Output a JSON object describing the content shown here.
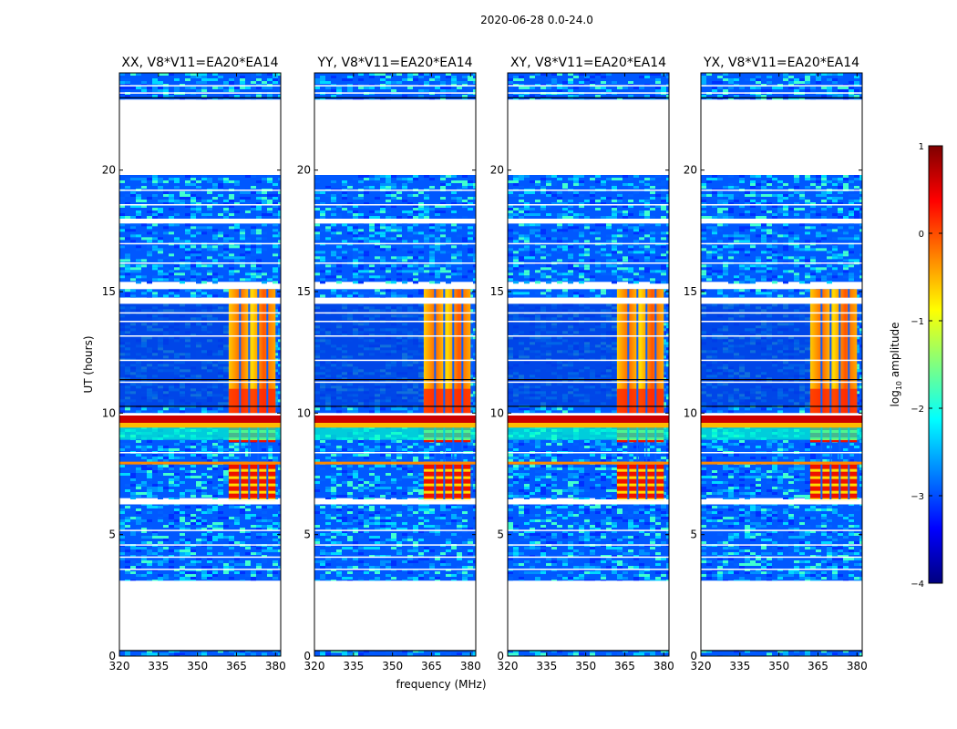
{
  "figure": {
    "suptitle": "2020-06-28 0.0-24.0",
    "xlabel": "frequency (MHz)",
    "ylabel": "UT (hours)"
  },
  "colorbar": {
    "label": "log10 amplitude",
    "label_base": "log",
    "label_sub": "10",
    "label_rest": " amplitude",
    "ticks": [
      "1",
      "0",
      "−1",
      "−2",
      "−3",
      "−4"
    ],
    "tick_values": [
      1,
      0,
      -1,
      -2,
      -3,
      -4
    ],
    "vmin": -4,
    "vmax": 1,
    "colormap": [
      "#00007f",
      "#0000ff",
      "#0080ff",
      "#00ffff",
      "#80ff80",
      "#ffff00",
      "#ff8000",
      "#ff0000",
      "#7f0000"
    ]
  },
  "chart_data": {
    "type": "heatmap",
    "title": "2020-06-28 0.0-24.0",
    "xlabel": "frequency (MHz)",
    "ylabel": "UT (hours)",
    "xlim": [
      320,
      382
    ],
    "ylim": [
      0,
      24
    ],
    "xticks": [
      320,
      335,
      350,
      365,
      380
    ],
    "yticks": [
      0,
      5,
      10,
      15,
      20
    ],
    "xtick_labels": [
      "320",
      "335",
      "350",
      "365",
      "380"
    ],
    "ytick_labels": [
      "0",
      "5",
      "10",
      "15",
      "20"
    ],
    "panels": [
      {
        "title": "XX, V8*V11=EA20*EA14",
        "pol": "XX",
        "rfi_band_mhz": [
          362,
          380
        ]
      },
      {
        "title": "YY, V8*V11=EA20*EA14",
        "pol": "YY",
        "rfi_band_mhz": [
          362,
          380
        ]
      },
      {
        "title": "XY, V8*V11=EA20*EA14",
        "pol": "XY",
        "rfi_band_mhz": [
          362,
          380
        ]
      },
      {
        "title": "YX, V8*V11=EA20*EA14",
        "pol": "YX",
        "rfi_band_mhz": [
          362,
          380
        ]
      }
    ],
    "data_blocks_ut": [
      [
        0.0,
        0.25
      ],
      [
        3.1,
        6.3
      ],
      [
        6.5,
        9.9
      ],
      [
        10.0,
        14.5
      ],
      [
        14.75,
        15.1
      ],
      [
        15.4,
        17.8
      ],
      [
        18.0,
        19.8
      ],
      [
        22.9,
        24.0
      ]
    ],
    "flagged_gaps_ut": [
      [
        0.25,
        3.1
      ],
      [
        9.9,
        10.0
      ],
      [
        14.5,
        14.75
      ],
      [
        19.8,
        22.9
      ]
    ],
    "strong_rfi_ut": [
      [
        6.4,
        8.0
      ],
      [
        8.8,
        9.9
      ]
    ],
    "colorbar_range": [
      -4,
      1
    ]
  }
}
